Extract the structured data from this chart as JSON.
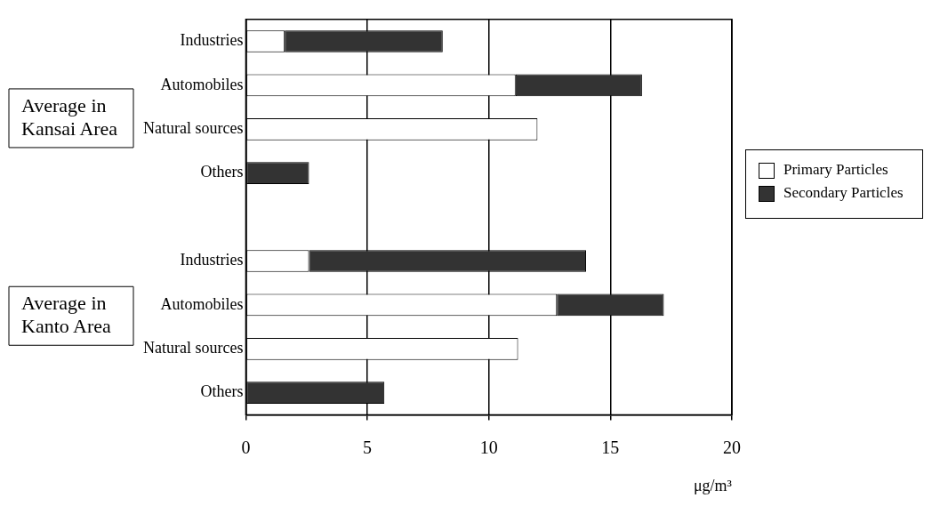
{
  "chart_data": {
    "type": "bar",
    "orientation": "horizontal",
    "stacked": true,
    "categories": [
      "Industries",
      "Automobiles",
      "Natural sources",
      "Others",
      null,
      "Industries",
      "Automobiles",
      "Natural sources",
      "Others"
    ],
    "series": [
      {
        "name": "Primary Particles",
        "color": "#ffffff",
        "values": [
          1.6,
          11.1,
          12.0,
          0,
          null,
          2.6,
          12.8,
          11.2,
          0
        ]
      },
      {
        "name": "Secondary Particles",
        "color": "#333333",
        "values": [
          6.5,
          5.2,
          0,
          2.6,
          null,
          11.4,
          4.4,
          0,
          5.7
        ]
      }
    ],
    "xlim": [
      0,
      20
    ],
    "xticks": [
      0,
      5,
      10,
      15,
      20
    ],
    "xlabel": "μg/m³",
    "grid": "x",
    "legend": "right",
    "annotations": [
      "Average in Kansai Area",
      "Average in Kanto Area"
    ]
  }
}
